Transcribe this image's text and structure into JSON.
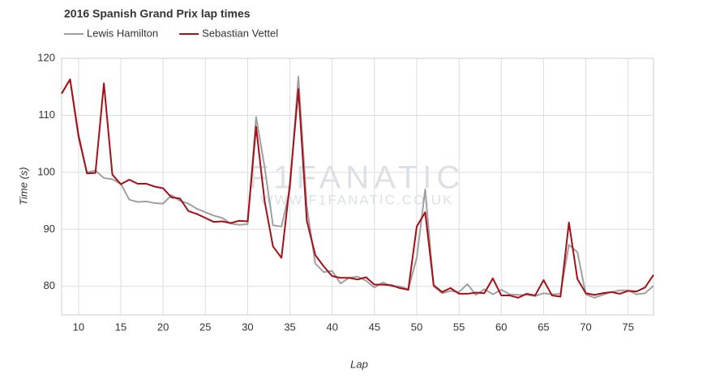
{
  "chart_data": {
    "type": "line",
    "title": "2016 Spanish Grand Prix lap times",
    "x_label": "Lap",
    "y_label": "Time (s)",
    "watermark": [
      "F1FANATIC",
      "WWW.F1FANATIC.CO.UK"
    ],
    "x": [
      8,
      9,
      10,
      11,
      12,
      13,
      14,
      15,
      16,
      17,
      18,
      19,
      20,
      21,
      22,
      23,
      24,
      25,
      26,
      27,
      28,
      29,
      30,
      31,
      32,
      33,
      34,
      35,
      36,
      37,
      38,
      39,
      40,
      41,
      42,
      43,
      44,
      45,
      46,
      47,
      48,
      49,
      50,
      51,
      52,
      53,
      54,
      55,
      56,
      57,
      58,
      59,
      60,
      61,
      62,
      63,
      64,
      65,
      66,
      67,
      68,
      69,
      70,
      71,
      72,
      73,
      74,
      75,
      76,
      77,
      78
    ],
    "series": [
      {
        "name": "Lewis Hamilton",
        "color": "#a0a0a0",
        "values": [
          113.8,
          116.3,
          106.0,
          100.0,
          100.3,
          99.0,
          98.8,
          98.0,
          95.2,
          94.8,
          94.9,
          94.6,
          94.5,
          96.0,
          95.0,
          94.5,
          93.6,
          93.0,
          92.4,
          92.0,
          91.0,
          90.8,
          90.9,
          109.7,
          101.0,
          90.7,
          90.5,
          97.0,
          116.8,
          94.0,
          84.0,
          82.5,
          82.7,
          80.5,
          81.5,
          81.7,
          81.0,
          79.8,
          80.7,
          80.0,
          80.0,
          79.5,
          85.0,
          97.0,
          80.0,
          78.8,
          79.2,
          79.0,
          80.4,
          78.5,
          79.5,
          78.6,
          79.4,
          78.6,
          78.5,
          78.5,
          78.3,
          78.8,
          78.6,
          78.7,
          87.3,
          86.0,
          78.6,
          78.0,
          78.5,
          79.0,
          79.3,
          79.3,
          78.6,
          78.8,
          80.1
        ]
      },
      {
        "name": "Sebastian Vettel",
        "color": "#a50f15",
        "values": [
          113.8,
          116.3,
          106.5,
          99.8,
          99.9,
          115.6,
          99.6,
          97.9,
          98.7,
          98.0,
          98.0,
          97.5,
          97.2,
          95.6,
          95.4,
          93.2,
          92.7,
          92.0,
          91.3,
          91.4,
          91.1,
          91.5,
          91.4,
          108.0,
          95.0,
          87.0,
          85.0,
          98.0,
          114.6,
          91.5,
          85.5,
          83.5,
          81.8,
          81.5,
          81.5,
          81.2,
          81.6,
          80.3,
          80.3,
          80.2,
          79.7,
          79.4,
          90.5,
          93.0,
          80.2,
          79.0,
          79.7,
          78.7,
          78.7,
          78.9,
          78.8,
          81.4,
          78.4,
          78.4,
          78.0,
          78.7,
          78.4,
          81.1,
          78.4,
          78.2,
          91.2,
          81.3,
          78.8,
          78.5,
          78.8,
          79.0,
          78.7,
          79.2,
          79.1,
          79.8,
          82.0
        ]
      }
    ],
    "xlim": [
      8,
      78
    ],
    "xticks": [
      10,
      15,
      20,
      25,
      30,
      35,
      40,
      45,
      50,
      55,
      60,
      65,
      70,
      75
    ],
    "ylim": [
      75,
      120
    ],
    "yticks": [
      80,
      90,
      100,
      110,
      120
    ],
    "grid": true
  }
}
